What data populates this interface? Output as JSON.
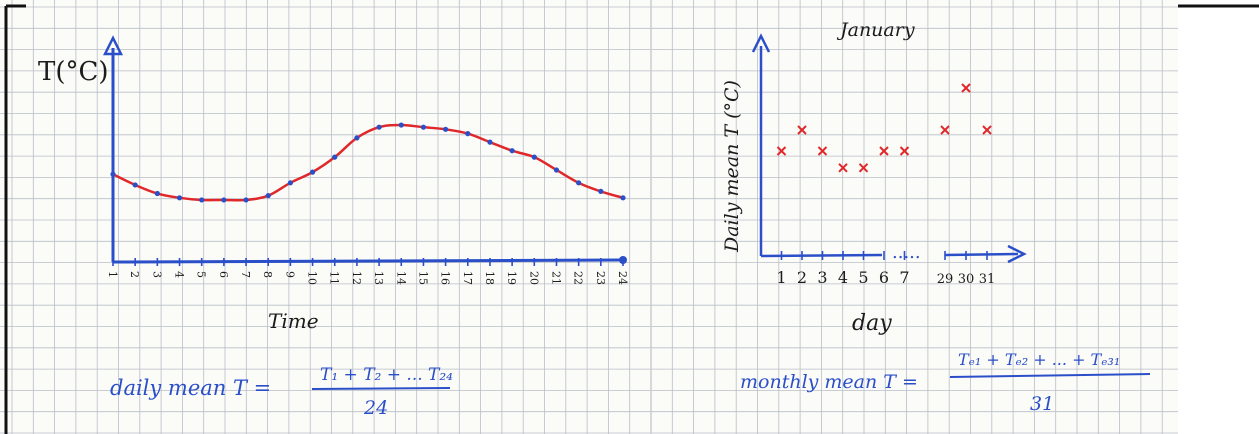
{
  "page": {
    "colors": {
      "paper": "#fbfbf8",
      "grid": "#b9bec8",
      "ink_blue": "#2b4fc8",
      "ink_black": "#1c1c1c",
      "ink_red": "#e0282a"
    }
  },
  "left": {
    "ylabel": "T(°C)",
    "xlabel": "Time",
    "formula": {
      "lhs": "daily mean T =",
      "numerator": "T₁ + T₂ + ... T₂₄",
      "denominator": "24"
    }
  },
  "right": {
    "title": "January",
    "ylabel": "Daily mean T (°C)",
    "xlabel": "day",
    "dots": ".....",
    "formula": {
      "lhs": "monthly mean T =",
      "numerator": "Tₑ₁ + Tₑ₂ + ... + Tₑ₃₁",
      "denominator": "31"
    }
  },
  "chart_data": [
    {
      "type": "line",
      "title": "",
      "xlabel": "Time",
      "ylabel": "T(°C)",
      "x": [
        1,
        2,
        3,
        4,
        5,
        6,
        7,
        8,
        9,
        10,
        11,
        12,
        13,
        14,
        15,
        16,
        17,
        18,
        19,
        20,
        21,
        22,
        23,
        24
      ],
      "tick_labels": [
        "1",
        "2",
        "3",
        "4",
        "5",
        "6",
        "7",
        "8",
        "9",
        "10",
        "11",
        "12",
        "13",
        "14",
        "15",
        "16",
        "17",
        "18",
        "19",
        "20",
        "21",
        "22",
        "23",
        "24"
      ],
      "series": [
        {
          "values": [
            4.1,
            3.6,
            3.2,
            3.0,
            2.9,
            2.9,
            2.9,
            3.1,
            3.7,
            4.2,
            4.9,
            5.8,
            6.3,
            6.4,
            6.3,
            6.2,
            6.0,
            5.6,
            5.2,
            4.9,
            4.3,
            3.7,
            3.3,
            3.0
          ]
        }
      ],
      "ylim": [
        0,
        10
      ],
      "grid": false
    },
    {
      "type": "scatter",
      "title": "January",
      "xlabel": "day",
      "ylabel": "Daily mean T (°C)",
      "x": [
        1,
        2,
        3,
        4,
        5,
        6,
        7,
        29,
        30,
        31
      ],
      "tick_labels": [
        "1",
        "2",
        "3",
        "4",
        "5",
        "6",
        "7",
        "29",
        "30",
        "31"
      ],
      "series": [
        {
          "values": [
            5.0,
            6.0,
            5.0,
            4.2,
            4.2,
            5.0,
            5.0,
            6.0,
            8.0,
            6.0
          ]
        }
      ],
      "ylim": [
        0,
        10
      ],
      "grid": false
    }
  ]
}
